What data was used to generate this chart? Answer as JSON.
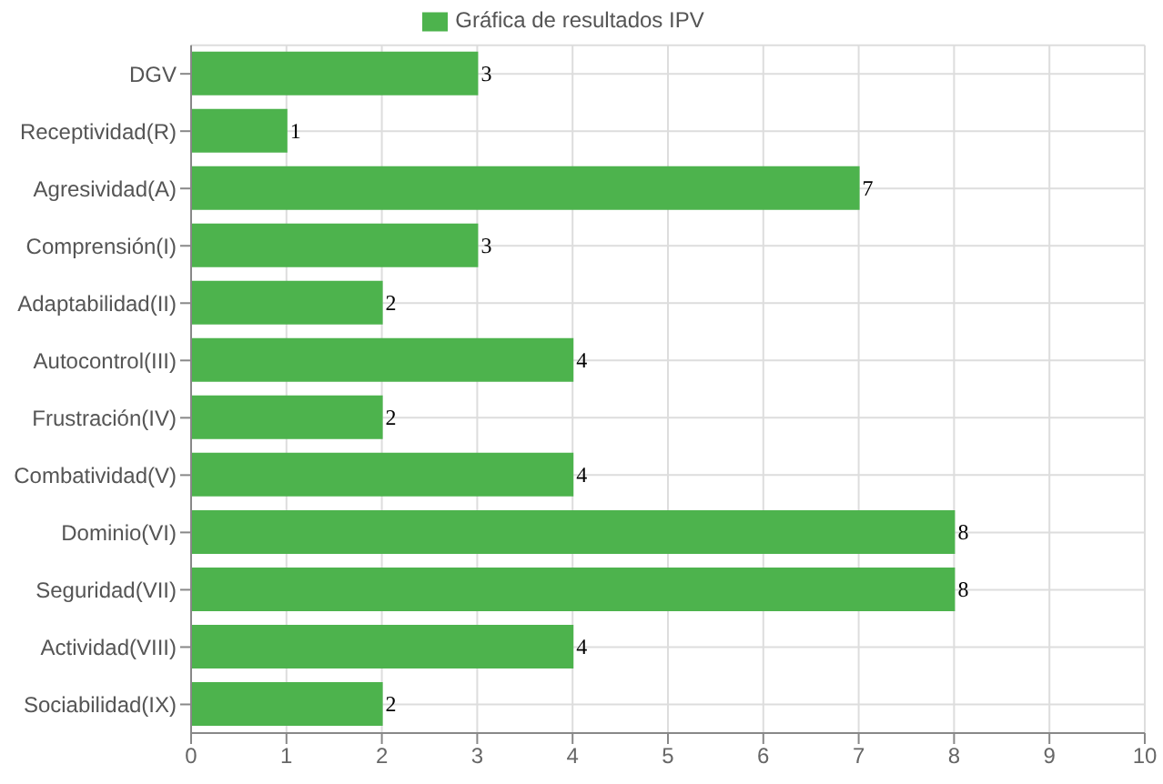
{
  "chart_data": {
    "type": "bar",
    "orientation": "horizontal",
    "categories": [
      "DGV",
      "Receptividad(R)",
      "Agresividad(A)",
      "Comprensión(I)",
      "Adaptabilidad(II)",
      "Autocontrol(III)",
      "Frustración(IV)",
      "Combatividad(V)",
      "Dominio(VI)",
      "Seguridad(VII)",
      "Actividad(VIII)",
      "Sociabilidad(IX)"
    ],
    "series": [
      {
        "name": "Gráfica de resultados IPV",
        "color": "#4db34d",
        "values": [
          3,
          1,
          7,
          3,
          2,
          4,
          2,
          4,
          8,
          8,
          4,
          2
        ]
      }
    ],
    "xlim": [
      0,
      10
    ],
    "xticks": [
      0,
      1,
      2,
      3,
      4,
      5,
      6,
      7,
      8,
      9,
      10
    ],
    "grid": true,
    "legend": "top",
    "data_labels": true
  }
}
